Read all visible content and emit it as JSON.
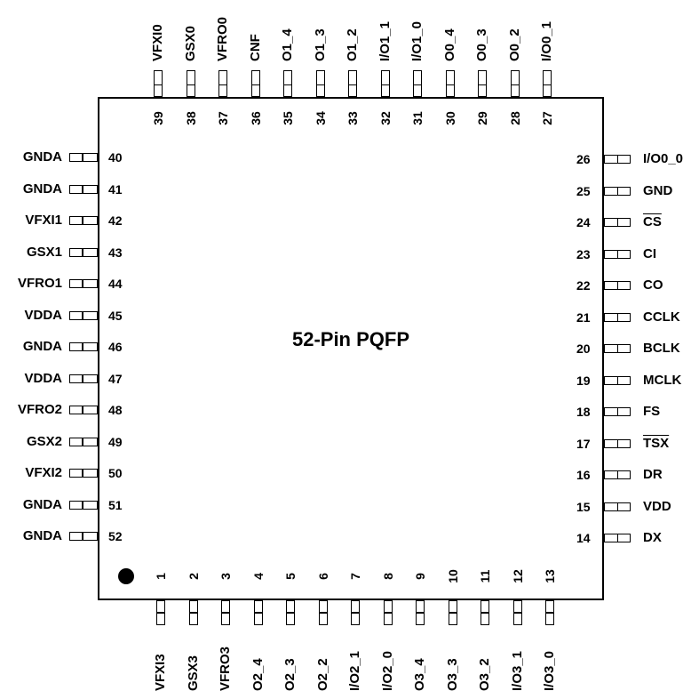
{
  "package": {
    "title": "52-Pin PQFP"
  },
  "pins": [
    {
      "n": "1",
      "name": "VFXI3"
    },
    {
      "n": "2",
      "name": "GSX3"
    },
    {
      "n": "3",
      "name": "VFRO3"
    },
    {
      "n": "4",
      "name": "O2_4"
    },
    {
      "n": "5",
      "name": "O2_3"
    },
    {
      "n": "6",
      "name": "O2_2"
    },
    {
      "n": "7",
      "name": "I/O2_1"
    },
    {
      "n": "8",
      "name": "I/O2_0"
    },
    {
      "n": "9",
      "name": "O3_4"
    },
    {
      "n": "10",
      "name": "O3_3"
    },
    {
      "n": "11",
      "name": "O3_2"
    },
    {
      "n": "12",
      "name": "I/O3_1"
    },
    {
      "n": "13",
      "name": "I/O3_0"
    },
    {
      "n": "14",
      "name": "DX"
    },
    {
      "n": "15",
      "name": "VDD"
    },
    {
      "n": "16",
      "name": "DR"
    },
    {
      "n": "17",
      "name": "TSX",
      "overline": true
    },
    {
      "n": "18",
      "name": "FS"
    },
    {
      "n": "19",
      "name": "MCLK"
    },
    {
      "n": "20",
      "name": "BCLK"
    },
    {
      "n": "21",
      "name": "CCLK"
    },
    {
      "n": "22",
      "name": "CO"
    },
    {
      "n": "23",
      "name": "CI"
    },
    {
      "n": "24",
      "name": "CS",
      "overline": true
    },
    {
      "n": "25",
      "name": "GND"
    },
    {
      "n": "26",
      "name": "I/O0_0"
    },
    {
      "n": "27",
      "name": "I/O0_1"
    },
    {
      "n": "28",
      "name": "O0_2"
    },
    {
      "n": "29",
      "name": "O0_3"
    },
    {
      "n": "30",
      "name": "O0_4"
    },
    {
      "n": "31",
      "name": "I/O1_0"
    },
    {
      "n": "32",
      "name": "I/O1_1"
    },
    {
      "n": "33",
      "name": "O1_2"
    },
    {
      "n": "34",
      "name": "O1_3"
    },
    {
      "n": "35",
      "name": "O1_4"
    },
    {
      "n": "36",
      "name": "CNF"
    },
    {
      "n": "37",
      "name": "VFRO0"
    },
    {
      "n": "38",
      "name": "GSX0"
    },
    {
      "n": "39",
      "name": "VFXI0"
    },
    {
      "n": "40",
      "name": "GNDA"
    },
    {
      "n": "41",
      "name": "GNDA"
    },
    {
      "n": "42",
      "name": "VFXI1"
    },
    {
      "n": "43",
      "name": "GSX1"
    },
    {
      "n": "44",
      "name": "VFRO1"
    },
    {
      "n": "45",
      "name": "VDDA"
    },
    {
      "n": "46",
      "name": "GNDA"
    },
    {
      "n": "47",
      "name": "VDDA"
    },
    {
      "n": "48",
      "name": "VFRO2"
    },
    {
      "n": "49",
      "name": "GSX2"
    },
    {
      "n": "50",
      "name": "VFXI2"
    },
    {
      "n": "51",
      "name": "GNDA"
    },
    {
      "n": "52",
      "name": "GNDA"
    }
  ]
}
